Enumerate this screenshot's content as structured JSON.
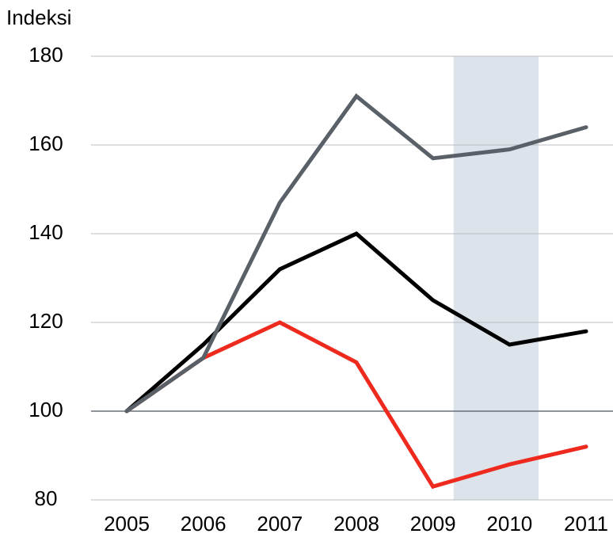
{
  "chart_data": {
    "type": "line",
    "ylabel": "Indeksi",
    "x": [
      2005,
      2006,
      2007,
      2008,
      2009,
      2010,
      2011
    ],
    "xlim": [
      2005,
      2011
    ],
    "xticks": [
      2005,
      2006,
      2007,
      2008,
      2009,
      2010,
      2011
    ],
    "ylim": [
      80,
      180
    ],
    "yticks": [
      80,
      100,
      120,
      140,
      160,
      180
    ],
    "grid": true,
    "baseline": 100,
    "band": {
      "x": [
        2009.27,
        2010.38
      ],
      "color": "#dde3ea"
    },
    "series": [
      {
        "color": "#5a6068",
        "values": [
          100,
          112,
          147,
          171,
          157,
          159,
          164
        ]
      },
      {
        "color": "#000000",
        "values": [
          100,
          115,
          132,
          140,
          125,
          115,
          118
        ]
      },
      {
        "color": "#ee2a1e",
        "values": [
          100,
          112,
          120,
          111,
          83,
          88,
          92
        ]
      }
    ]
  }
}
